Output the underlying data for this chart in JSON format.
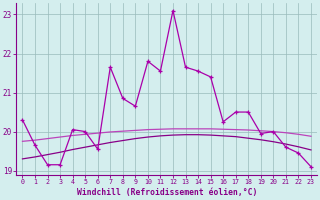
{
  "x": [
    0,
    1,
    2,
    3,
    4,
    5,
    6,
    7,
    8,
    9,
    10,
    11,
    12,
    13,
    14,
    15,
    16,
    17,
    18,
    19,
    20,
    21,
    22,
    23
  ],
  "y_main": [
    20.3,
    19.65,
    19.15,
    19.15,
    20.05,
    20.0,
    19.55,
    21.65,
    20.85,
    20.65,
    21.8,
    21.55,
    23.1,
    21.65,
    21.55,
    21.4,
    20.25,
    20.5,
    20.5,
    19.95,
    20.0,
    19.6,
    19.45,
    19.1
  ],
  "y_upper": [
    19.75,
    19.78,
    19.82,
    19.86,
    19.9,
    19.93,
    19.96,
    19.99,
    20.01,
    20.03,
    20.05,
    20.06,
    20.07,
    20.07,
    20.07,
    20.07,
    20.06,
    20.05,
    20.04,
    20.02,
    20.0,
    19.97,
    19.93,
    19.88
  ],
  "y_lower": [
    19.3,
    19.35,
    19.41,
    19.47,
    19.54,
    19.6,
    19.66,
    19.72,
    19.77,
    19.82,
    19.86,
    19.89,
    19.91,
    19.92,
    19.92,
    19.91,
    19.89,
    19.87,
    19.83,
    19.79,
    19.74,
    19.68,
    19.61,
    19.53
  ],
  "color_main": "#aa00aa",
  "color_upper": "#bb44bb",
  "color_lower": "#880088",
  "bg_color": "#d4eeee",
  "grid_color": "#99bbbb",
  "axis_color": "#880088",
  "tick_color": "#880088",
  "xlabel": "Windchill (Refroidissement éolien,°C)",
  "xlim": [
    -0.5,
    23.5
  ],
  "ylim": [
    18.88,
    23.3
  ],
  "yticks": [
    19,
    20,
    21,
    22,
    23
  ],
  "xticks": [
    0,
    1,
    2,
    3,
    4,
    5,
    6,
    7,
    8,
    9,
    10,
    11,
    12,
    13,
    14,
    15,
    16,
    17,
    18,
    19,
    20,
    21,
    22,
    23
  ]
}
